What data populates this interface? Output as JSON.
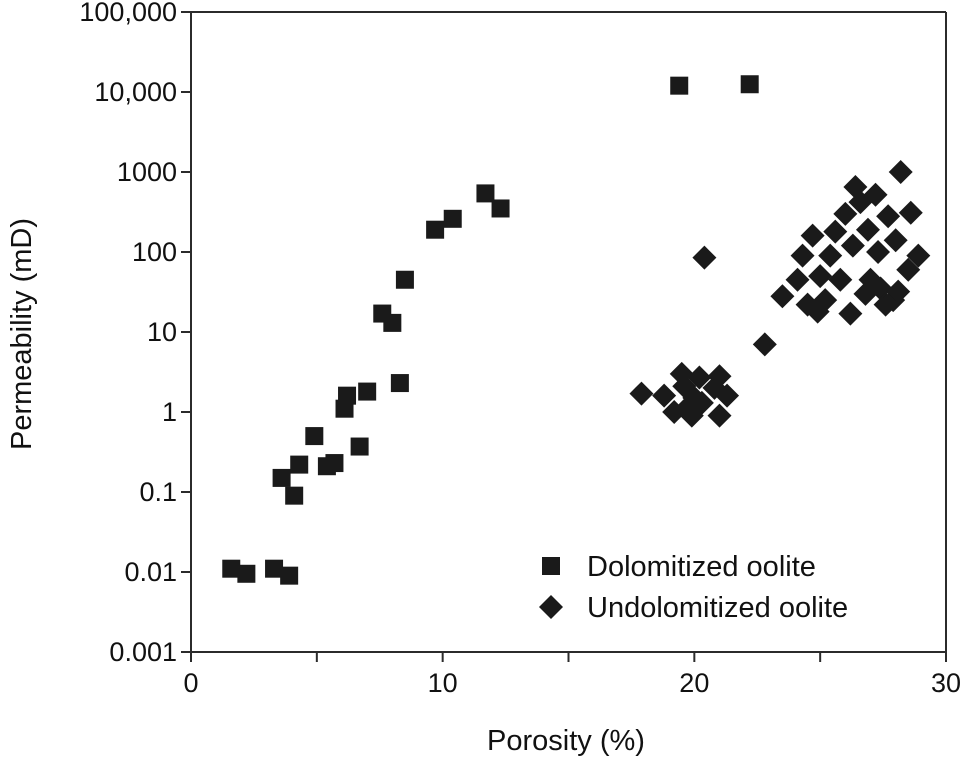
{
  "chart_data": {
    "type": "scatter",
    "title": "",
    "xlabel": "Porosity (%)",
    "ylabel": "Permeability (mD)",
    "xlim": [
      0,
      30
    ],
    "ylim": [
      0.001,
      100000
    ],
    "yscale": "log",
    "grid": false,
    "legend_position": "bottom-right",
    "x_ticks": [
      {
        "value": 0,
        "label": "0"
      },
      {
        "value": 10,
        "label": "10"
      },
      {
        "value": 20,
        "label": "20"
      },
      {
        "value": 30,
        "label": "30"
      }
    ],
    "x_minor_ticks": [
      5,
      15,
      25
    ],
    "y_ticks": [
      {
        "value": 0.001,
        "label": "0.001"
      },
      {
        "value": 0.01,
        "label": "0.01"
      },
      {
        "value": 0.1,
        "label": "0.1"
      },
      {
        "value": 1,
        "label": "1"
      },
      {
        "value": 10,
        "label": "10"
      },
      {
        "value": 100,
        "label": "100"
      },
      {
        "value": 1000,
        "label": "1000"
      },
      {
        "value": 10000,
        "label": "10,000"
      },
      {
        "value": 100000,
        "label": "100,000"
      }
    ],
    "series": [
      {
        "name": "Dolomitized oolite",
        "marker": "square",
        "color": "#1a1a1a",
        "points": [
          [
            1.6,
            0.011
          ],
          [
            2.2,
            0.0095
          ],
          [
            3.3,
            0.011
          ],
          [
            3.9,
            0.009
          ],
          [
            3.6,
            0.15
          ],
          [
            4.1,
            0.09
          ],
          [
            4.3,
            0.22
          ],
          [
            4.9,
            0.5
          ],
          [
            5.4,
            0.21
          ],
          [
            5.7,
            0.23
          ],
          [
            6.1,
            1.1
          ],
          [
            6.2,
            1.6
          ],
          [
            6.7,
            0.37
          ],
          [
            7.0,
            1.8
          ],
          [
            7.6,
            17.0
          ],
          [
            8.0,
            13.0
          ],
          [
            8.3,
            2.3
          ],
          [
            8.5,
            45.0
          ],
          [
            9.7,
            190.0
          ],
          [
            10.4,
            260.0
          ],
          [
            11.7,
            540.0
          ],
          [
            12.3,
            350.0
          ],
          [
            19.4,
            12000.0
          ],
          [
            22.2,
            12500.0
          ]
        ]
      },
      {
        "name": "Undolomitized oolite",
        "marker": "diamond",
        "color": "#1a1a1a",
        "points": [
          [
            17.9,
            1.7
          ],
          [
            18.8,
            1.6
          ],
          [
            19.2,
            1.0
          ],
          [
            19.5,
            3.0
          ],
          [
            19.6,
            2.1
          ],
          [
            19.8,
            1.2
          ],
          [
            19.9,
            0.9
          ],
          [
            20.0,
            1.5
          ],
          [
            20.2,
            2.7
          ],
          [
            20.3,
            1.3
          ],
          [
            20.4,
            85.0
          ],
          [
            20.8,
            2.0
          ],
          [
            21.0,
            2.8
          ],
          [
            21.0,
            0.9
          ],
          [
            21.3,
            1.6
          ],
          [
            22.8,
            7.0
          ],
          [
            23.5,
            28.0
          ],
          [
            24.1,
            45.0
          ],
          [
            24.3,
            90.0
          ],
          [
            24.5,
            22.0
          ],
          [
            24.7,
            160.0
          ],
          [
            24.9,
            18.0
          ],
          [
            25.0,
            50.0
          ],
          [
            25.2,
            25.0
          ],
          [
            25.4,
            90.0
          ],
          [
            25.6,
            180.0
          ],
          [
            25.8,
            45.0
          ],
          [
            26.0,
            300.0
          ],
          [
            26.2,
            17.0
          ],
          [
            26.3,
            120.0
          ],
          [
            26.4,
            650.0
          ],
          [
            26.6,
            420.0
          ],
          [
            26.8,
            30.0
          ],
          [
            26.9,
            190.0
          ],
          [
            27.0,
            45.0
          ],
          [
            27.2,
            520.0
          ],
          [
            27.3,
            100.0
          ],
          [
            27.4,
            35.0
          ],
          [
            27.6,
            22.0
          ],
          [
            27.7,
            280.0
          ],
          [
            27.9,
            25.0
          ],
          [
            28.0,
            140.0
          ],
          [
            28.1,
            32.0
          ],
          [
            28.2,
            1000.0
          ],
          [
            28.5,
            60.0
          ],
          [
            28.6,
            310.0
          ],
          [
            28.9,
            90.0
          ]
        ]
      }
    ]
  }
}
